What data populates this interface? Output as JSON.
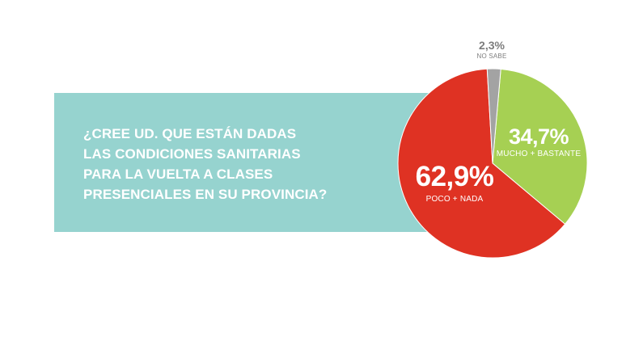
{
  "banner": {
    "question": "¿CREE UD. QUE ESTÁN DADAS\nLAS CONDICIONES SANITARIAS\nPARA LA VUELTA A CLASES\nPRESENCIALES EN SU PROVINCIA?",
    "color": "#96d3cf"
  },
  "chart_data": {
    "type": "pie",
    "slices": [
      {
        "label": "MUCHO + BASTANTE",
        "value": 34.7,
        "display": "34,7%",
        "color": "#a6d053"
      },
      {
        "label": "POCO + NADA",
        "value": 62.9,
        "display": "62,9%",
        "color": "#df3223"
      },
      {
        "label": "NO SABE",
        "value": 2.3,
        "display": "2,3%",
        "color": "#a3a3a3"
      }
    ]
  }
}
